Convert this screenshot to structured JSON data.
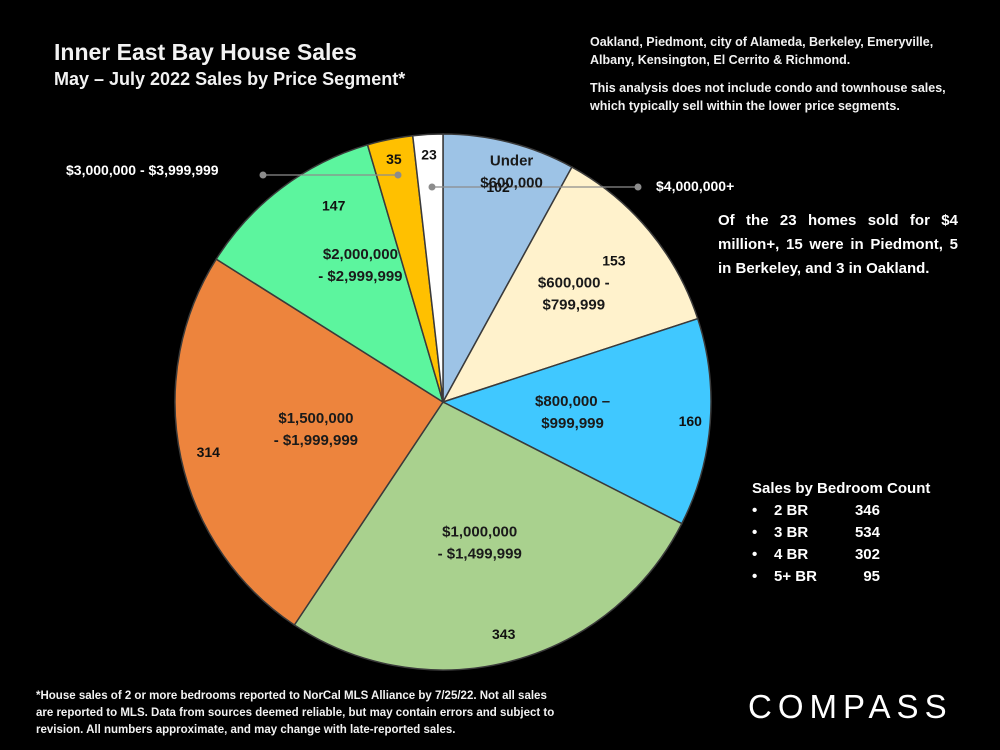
{
  "title": "Inner East Bay House Sales",
  "subtitle": "May – July 2022 Sales by Price Segment*",
  "note_areas": "Oakland, Piedmont, city of Alameda, Berkeley, Emeryville, Albany, Kensington, El Cerrito & Richmond.",
  "note_exclusion": "This analysis does not include condo and townhouse sales, which typically sell within the lower price segments.",
  "callout": "Of the 23 homes sold for $4 million+, 15 were in Piedmont, 5 in Berkeley, and 3 in Oakland.",
  "bedroom": {
    "heading": "Sales by Bedroom Count",
    "items": [
      {
        "label": "2 BR",
        "value": "346"
      },
      {
        "label": "3 BR",
        "value": "534"
      },
      {
        "label": "4 BR",
        "value": "302"
      },
      {
        "label": "5+ BR",
        "value": "95"
      }
    ]
  },
  "footnote": "*House sales of 2 or more bedrooms reported to NorCal MLS Alliance by 7/25/22. Not all sales are reported to MLS. Data from sources deemed reliable, but may contain errors and subject to revision. All numbers approximate, and may change with late-reported sales.",
  "logo": "COMPASS",
  "chart_data": {
    "type": "pie",
    "title": "Inner East Bay House Sales",
    "start": "12 o'clock, clockwise",
    "slices": [
      {
        "segment": "Under $600,000",
        "line1": "Under",
        "line2": "$600,000",
        "value": 102,
        "color": "#9dc3e6"
      },
      {
        "segment": "$600,000 - $799,999",
        "line1": "$600,000 -",
        "line2": "$799,999",
        "value": 153,
        "color": "#fff2cc"
      },
      {
        "segment": "$800,000 – $999,999",
        "line1": "$800,000 –",
        "line2": "$999,999",
        "value": 160,
        "color": "#40c8ff"
      },
      {
        "segment": "$1,000,000 - $1,499,999",
        "line1": "$1,000,000",
        "line2": "- $1,499,999",
        "value": 343,
        "color": "#a9d18e"
      },
      {
        "segment": "$1,500,000 - $1,999,999",
        "line1": "$1,500,000",
        "line2": "- $1,999,999",
        "value": 314,
        "color": "#ed843d"
      },
      {
        "segment": "$2,000,000 - $2,999,999",
        "line1": "$2,000,000",
        "line2": "- $2,999,999",
        "value": 147,
        "color": "#5cf59e"
      },
      {
        "segment": "$3,000,000 - $3,999,999",
        "line1": "",
        "line2": "",
        "value": 35,
        "color": "#ffc000"
      },
      {
        "segment": "$4,000,000+",
        "line1": "",
        "line2": "",
        "value": 23,
        "color": "#ffffff"
      }
    ],
    "external_labels": {
      "three_million": "$3,000,000 - $3,999,999",
      "four_million": "$4,000,000+"
    }
  }
}
